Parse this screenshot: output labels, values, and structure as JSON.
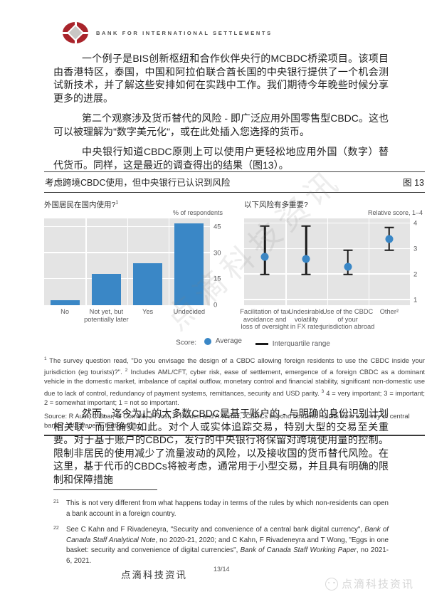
{
  "header": {
    "wordmark": "BANK FOR INTERNATIONAL SETTLEMENTS"
  },
  "paragraphs": {
    "p1": "一个例子是BIS创新枢纽和合作伙伴央行的MCBDC桥梁项目。该项目由香港特区，泰国，中国和阿拉伯联合酋长国的中央银行提供了一个机会测试新技术，并了解这些安排如何在实践中工作。我们期待今年晚些时候分享更多的进展。",
    "p2": "第二个观察涉及货币替代的风险 - 即广泛应用外国零售型CBDC。这也可以被理解为\"数字美元化\"，或在此处插入您选择的货币。",
    "p3": "中央银行知道CBDC原则上可以使用户更轻松地应用外国（数字）替代货币。同样，这是最近的调查得出的结果（图13）。",
    "p4": "然而，迄今为止的大多数CBDC是基于账户的 - 与明确的身份识别计划相关联 - 而且确实如此。对个人或实体追踪交易，特别大型的交易至关重要。对于基于账户的CBDC，发行的中央银行将保留对跨境使用量的控制。限制非居民的使用减少了流量波动的风险，以及接收国的货币替代风险。在这里，基于代币的CBDCs将被考虑，通常用于小型交易，并且具有明确的限制和保障措施"
  },
  "figure": {
    "title": "考虑跨境CBDC使用，但中央银行已认识到风险",
    "number": "图 13",
    "legend": {
      "score_label": "Score:",
      "average_label": "Average",
      "iqr_label": "Interquartile range"
    },
    "notes": [
      {
        "sup": "1",
        "text": "The survey question read, \"Do you envisage the design of a CBDC allowing foreign residents to use the CBDC inside your jurisdiction (eg tourists)?\"."
      },
      {
        "sup": "2",
        "text": "Includes AML/CFT, cyber risk, ease of settlement, emergence of a foreign CBDC as a dominant vehicle in the domestic market, imbalance of capital outflow, monetary control and financial stability, significant non-domestic use due to lack of control, redundancy of payment systems, remittances, security and USD parity."
      },
      {
        "sup": "3",
        "text": "4 = very important; 3 = important; 2 = somewhat important; 1 = not so important."
      }
    ],
    "source_segments": [
      {
        "t": "Source: R Auer, C Boar, G Cornelli, J Frost, H Holden and A Wehrli, \"CBDCs beyond borders: results from a survey of central banks\", "
      },
      {
        "t": "BIS Papers",
        "i": true
      },
      {
        "t": ", forthcoming."
      }
    ],
    "colors": {
      "bar_blue": "#3a87c6",
      "plot_background": "#e4e4e4",
      "whisker_black": "#1a1a1a",
      "rule_dark": "#404040"
    }
  },
  "chart_data": [
    {
      "type": "bar",
      "panel_title": "外国居民在国内使用?",
      "panel_title_sup": "1",
      "ylabel": "% of respondents",
      "categories": [
        [
          "No"
        ],
        [
          "Not yet, but",
          "potentially later"
        ],
        [
          "Yes"
        ],
        [
          "Undecided"
        ]
      ],
      "values": [
        3,
        18,
        24,
        47
      ],
      "yticks": [
        0,
        15,
        30,
        45
      ],
      "ylim": [
        0,
        50
      ],
      "grid": true,
      "bar_color": "#3a87c6"
    },
    {
      "type": "scatter",
      "panel_title": "以下风险有多重要?",
      "panel_title_sup": "",
      "ylabel": "Relative score, 1–4",
      "categories": [
        [
          "Facilitation of tax",
          "avoidance and",
          "loss of oversight"
        ],
        [
          "Undesirable",
          "volatility",
          "in FX rates"
        ],
        [
          "Use of the CBDC",
          "of your",
          "jurisdiction abroad"
        ],
        [
          "Other²"
        ]
      ],
      "series": [
        {
          "name": "Average",
          "values": [
            2.7,
            2.6,
            2.3,
            3.4
          ]
        },
        {
          "name": "Interquartile range",
          "low": [
            2.0,
            2.0,
            2.0,
            2.95
          ],
          "high": [
            3.9,
            3.9,
            2.95,
            3.85
          ]
        }
      ],
      "yticks": [
        1,
        2,
        3,
        4
      ],
      "ylim": [
        0.8,
        4.2
      ],
      "grid": true,
      "dot_color": "#3a87c6"
    }
  ],
  "footnotes": [
    {
      "num": "21",
      "segments": [
        {
          "t": "This is not very different from what happens today in terms of the rules by which non-residents can open a bank account in a foreign country."
        }
      ]
    },
    {
      "num": "22",
      "segments": [
        {
          "t": "See C Kahn and F Rivadeneyra, \"Security and convenience of a central bank digital currency\", "
        },
        {
          "t": "Bank of Canada Staff Analytical Note",
          "i": true
        },
        {
          "t": ", no 2020-21, 2020; and C Kahn, F Rivadeneyra and T Wong, \"Eggs in one basket: security and convenience of digital currencies\", "
        },
        {
          "t": "Bank of Canada Staff Working Paper",
          "i": true
        },
        {
          "t": ", no 2021-6, 2021."
        }
      ]
    }
  ],
  "footer": {
    "brand": "点滴科技资讯",
    "page": "13/14"
  },
  "watermark": {
    "diagonal_text": "点滴科技资讯",
    "corner_text": "点滴科技资讯"
  }
}
